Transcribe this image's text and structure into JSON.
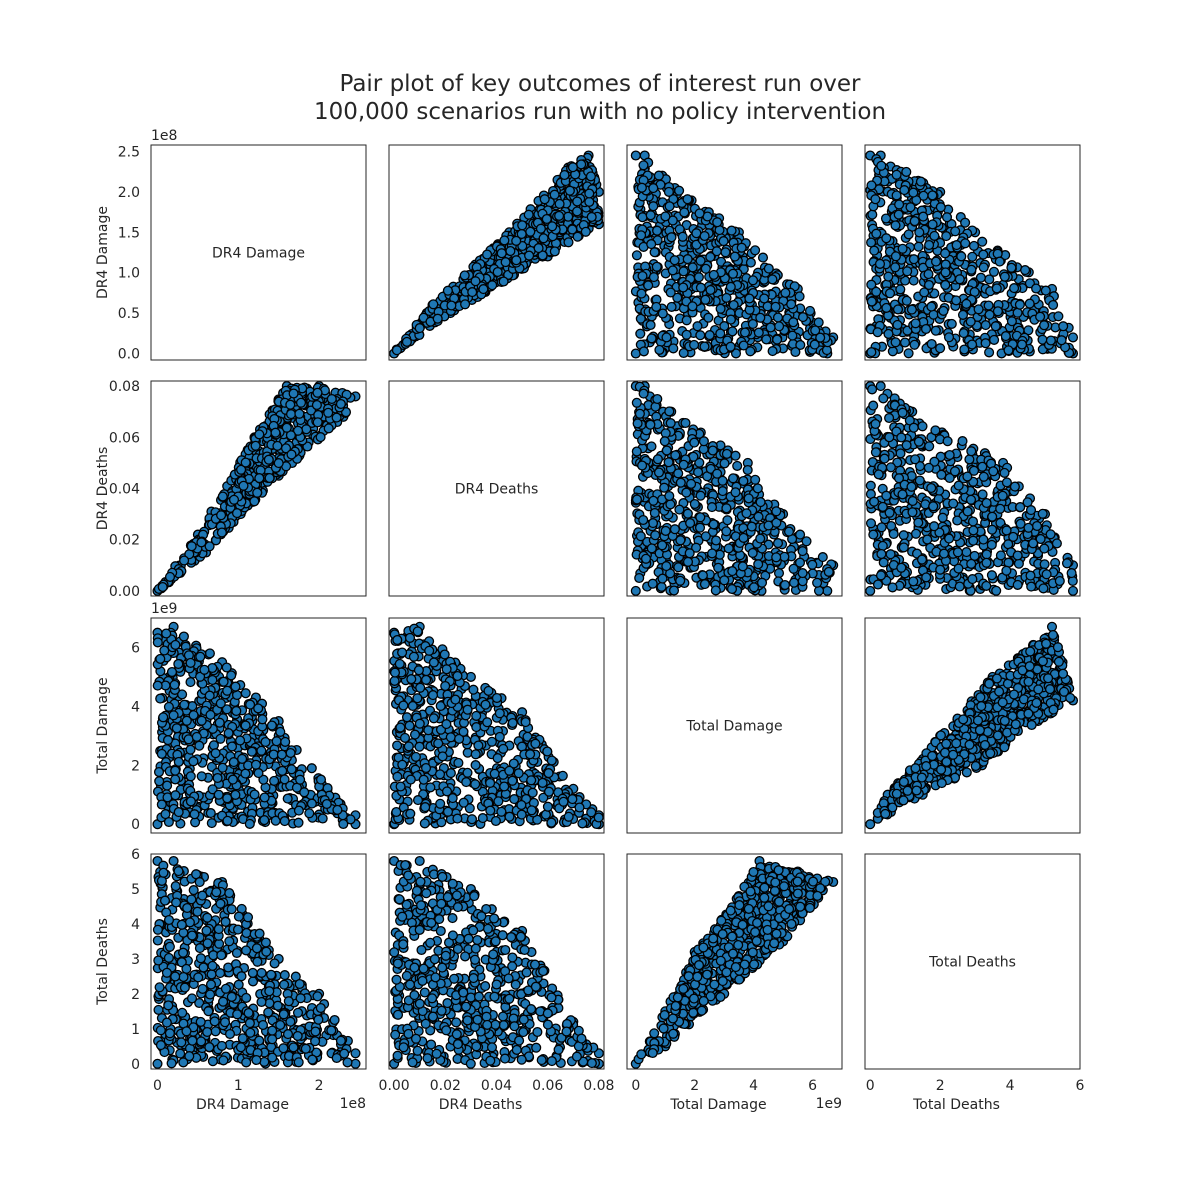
{
  "title_line1": "Pair plot of key outcomes of interest run over",
  "title_line2": "100,000 scenarios run with no policy intervention",
  "variables": [
    {
      "name": "DR4 Damage",
      "range": [
        -8000000,
        258000000
      ],
      "ticks": [
        0,
        50000000,
        100000000,
        150000000,
        200000000,
        250000000
      ],
      "y_tick_labels": [
        "0.0",
        "0.5",
        "1.0",
        "1.5",
        "2.0",
        "2.5"
      ],
      "x_ticks": [
        0,
        100000000,
        200000000
      ],
      "x_tick_labels": [
        "0",
        "1",
        "2"
      ],
      "offset": "1e8"
    },
    {
      "name": "DR4 Deaths",
      "range": [
        -0.002,
        0.082
      ],
      "ticks": [
        0,
        0.02,
        0.04,
        0.06,
        0.08
      ],
      "y_tick_labels": [
        "0.00",
        "0.02",
        "0.04",
        "0.06",
        "0.08"
      ],
      "x_ticks": [
        0,
        0.02,
        0.04,
        0.06,
        0.08
      ],
      "x_tick_labels": [
        "0.00",
        "0.02",
        "0.04",
        "0.06",
        "0.08"
      ],
      "offset": ""
    },
    {
      "name": "Total Damage",
      "range": [
        -300000000,
        7000000000
      ],
      "ticks": [
        0,
        2000000000,
        4000000000,
        6000000000
      ],
      "y_tick_labels": [
        "0",
        "2",
        "4",
        "6"
      ],
      "x_ticks": [
        0,
        2000000000,
        4000000000,
        6000000000
      ],
      "x_tick_labels": [
        "0",
        "2",
        "4",
        "6"
      ],
      "offset": "1e9"
    },
    {
      "name": "Total Deaths",
      "range": [
        -0.15,
        6.0
      ],
      "ticks": [
        0,
        1,
        2,
        3,
        4,
        5,
        6
      ],
      "y_tick_labels": [
        "0",
        "1",
        "2",
        "3",
        "4",
        "5",
        "6"
      ],
      "x_ticks": [
        0,
        2,
        4,
        6
      ],
      "x_tick_labels": [
        "0",
        "2",
        "4",
        "6"
      ],
      "offset": ""
    }
  ],
  "chart_data": {
    "type": "scatter",
    "kind": "pair-plot",
    "title": "Pair plot of key outcomes of interest run over 100,000 scenarios run with no policy intervention",
    "n_scenarios": 100000,
    "marker_color": "#1f77b4",
    "marker_edge_color": "#000000",
    "diagonal": "variable name label",
    "axis_ranges": {
      "DR4 Damage": [
        0,
        240000000
      ],
      "DR4 Deaths": [
        0,
        0.08
      ],
      "Total Damage": [
        0,
        6700000000
      ],
      "Total Deaths": [
        0,
        5.85
      ]
    },
    "pairs": [
      {
        "x": "DR4 Damage",
        "y": "DR4 Deaths",
        "relation": "positive wedge",
        "outline": [
          [
            0,
            0
          ],
          [
            50000000,
            0.022
          ],
          [
            120000000,
            0.06
          ],
          [
            160000000,
            0.08
          ],
          [
            200000000,
            0.08
          ],
          [
            245000000,
            0.076
          ],
          [
            230000000,
            0.068
          ],
          [
            150000000,
            0.045
          ],
          [
            60000000,
            0.015
          ],
          [
            5000000,
            0.001
          ]
        ]
      },
      {
        "x": "DR4 Deaths",
        "y": "Total Damage",
        "relation": "negative triangle",
        "outline": [
          [
            0,
            0
          ],
          [
            0,
            6500000000
          ],
          [
            0.01,
            6700000000
          ],
          [
            0.03,
            5000000000
          ],
          [
            0.05,
            3800000000
          ],
          [
            0.07,
            1200000000
          ],
          [
            0.08,
            300000000
          ],
          [
            0.08,
            0
          ]
        ]
      },
      {
        "x": "Total Damage",
        "y": "Total Deaths",
        "relation": "positive wedge",
        "outline": [
          [
            0,
            0
          ],
          [
            1000000000,
            1.5
          ],
          [
            2000000000,
            3.2
          ],
          [
            3500000000,
            4.8
          ],
          [
            4200000000,
            5.8
          ],
          [
            5500000000,
            5.5
          ],
          [
            6700000000,
            5.2
          ],
          [
            5000000000,
            3.5
          ],
          [
            3000000000,
            2.0
          ],
          [
            1000000000,
            0.5
          ]
        ]
      },
      {
        "x": "DR4 Damage",
        "y": "Total Damage",
        "relation": "negative triangle",
        "outline": [
          [
            0,
            0
          ],
          [
            0,
            6500000000
          ],
          [
            20000000,
            6700000000
          ],
          [
            80000000,
            5500000000
          ],
          [
            150000000,
            3500000000
          ],
          [
            220000000,
            900000000
          ],
          [
            245000000,
            300000000
          ],
          [
            245000000,
            0
          ]
        ]
      },
      {
        "x": "DR4 Damage",
        "y": "Total Deaths",
        "relation": "negative triangle",
        "outline": [
          [
            0,
            0
          ],
          [
            0,
            5.8
          ],
          [
            20000000,
            5.8
          ],
          [
            80000000,
            5.2
          ],
          [
            150000000,
            3.0
          ],
          [
            200000000,
            2.0
          ],
          [
            245000000,
            0.3
          ],
          [
            245000000,
            0
          ]
        ]
      },
      {
        "x": "DR4 Deaths",
        "y": "Total Deaths",
        "relation": "negative triangle",
        "outline": [
          [
            0,
            0
          ],
          [
            0,
            5.8
          ],
          [
            0.01,
            5.8
          ],
          [
            0.03,
            5.0
          ],
          [
            0.05,
            3.8
          ],
          [
            0.07,
            1.2
          ],
          [
            0.08,
            0.3
          ],
          [
            0.08,
            0
          ]
        ]
      }
    ]
  }
}
